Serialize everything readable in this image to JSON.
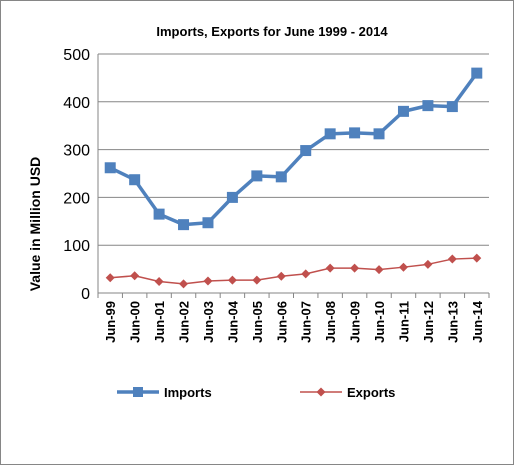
{
  "chart_data": {
    "type": "line",
    "title": "Imports, Exports for June 1999 - 2014",
    "xlabel": "",
    "ylabel": "Value in  Million  USD",
    "ylim": [
      0,
      500
    ],
    "yticks": [
      0,
      100,
      200,
      300,
      400,
      500
    ],
    "grid": "horizontal",
    "legend": "bottom",
    "categories": [
      "Jun-99",
      "Jun-00",
      "Jun-01",
      "Jun-02",
      "Jun-03",
      "Jun-04",
      "Jun-05",
      "Jun-06",
      "Jun-07",
      "Jun-08",
      "Jun-09",
      "Jun-10",
      "Jun-11",
      "Jun-12",
      "Jun-13",
      "Jun-14"
    ],
    "series": [
      {
        "name": "Imports",
        "color": "#4F81BD",
        "marker": "square",
        "values": [
          262,
          237,
          165,
          143,
          147,
          200,
          245,
          243,
          298,
          333,
          335,
          333,
          380,
          392,
          390,
          460
        ]
      },
      {
        "name": "Exports",
        "color": "#C0504D",
        "marker": "diamond",
        "values": [
          32,
          36,
          24,
          19,
          25,
          27,
          27,
          35,
          40,
          52,
          52,
          49,
          54,
          60,
          71,
          73
        ]
      }
    ]
  }
}
